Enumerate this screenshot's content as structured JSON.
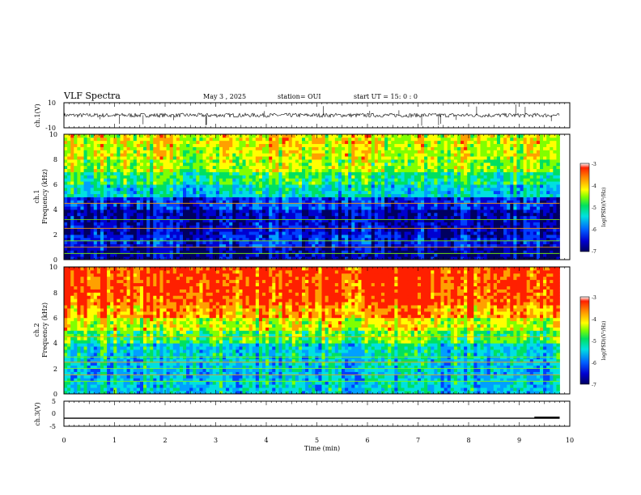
{
  "header": {
    "title": "VLF Spectra",
    "date": "May 3 , 2025",
    "station": "station= OUI",
    "start": "start UT = 15: 0 : 0"
  },
  "colors": {
    "spectrum_scale": [
      "#000060",
      "#0000d0",
      "#0040ff",
      "#00a0ff",
      "#00e0e0",
      "#00e060",
      "#80ff00",
      "#ffff00",
      "#ffa000",
      "#ff2000"
    ],
    "trace": "#000000"
  },
  "chart_data": [
    {
      "id": "ch1_waveform",
      "type": "line",
      "ylabel": "ch.1(V)",
      "ylim": [
        -10,
        10
      ],
      "yticks": [
        "10",
        "-10"
      ],
      "baseline": 0,
      "xlim": [
        0,
        10
      ],
      "data_end": 9.8
    },
    {
      "id": "ch1_spectrogram",
      "type": "heatmap",
      "ylabel": "ch.1",
      "ylabel2": "Frequency (kHz)",
      "ylim": [
        0,
        10
      ],
      "yticks": [
        "0",
        "2",
        "4",
        "6",
        "8",
        "10"
      ],
      "xlim": [
        0,
        10
      ],
      "data_end": 9.8,
      "profile_log_psd": [
        -6.6,
        -6.2,
        -6.4,
        -6.5,
        -6.1,
        -5.2,
        -4.8,
        -4.3,
        -4.1,
        -4.0
      ],
      "lines_khz": [
        0.5,
        1.0,
        1.5,
        2.5,
        3.2,
        4.5
      ],
      "colorbar": {
        "label": "log(PSD)(V²/Hz)",
        "range": [
          -7,
          -3
        ],
        "ticks": [
          "-3",
          "-4",
          "-5",
          "-6",
          "-7"
        ]
      }
    },
    {
      "id": "ch2_spectrogram",
      "type": "heatmap",
      "ylabel": "ch.2",
      "ylabel2": "Frequency (kHz)",
      "ylim": [
        0,
        10
      ],
      "yticks": [
        "0",
        "2",
        "4",
        "6",
        "8",
        "10"
      ],
      "xlim": [
        0,
        10
      ],
      "data_end": 9.8,
      "profile_log_psd": [
        -5.3,
        -5.4,
        -5.3,
        -5.2,
        -4.6,
        -4.1,
        -3.6,
        -3.3,
        -3.2,
        -3.2
      ],
      "lines_khz": [
        1.0,
        1.5,
        2.0,
        2.5,
        2.9,
        4.5
      ],
      "colorbar": {
        "label": "log(PSD)(V²/Hz)",
        "range": [
          -7,
          -3
        ],
        "ticks": [
          "-3",
          "-4",
          "-5",
          "-6",
          "-7"
        ]
      }
    },
    {
      "id": "ch3_waveform",
      "type": "line",
      "ylabel": "ch.3(V)",
      "ylim": [
        -5,
        5
      ],
      "yticks": [
        "5",
        "0",
        "-5"
      ],
      "baseline": -1.8,
      "step": {
        "x": 9.3,
        "value": -1.4
      },
      "xlim": [
        0,
        10
      ],
      "data_end": 9.8,
      "xlabel": "Time (min)",
      "xticks": [
        "0",
        "1",
        "2",
        "3",
        "4",
        "5",
        "6",
        "7",
        "8",
        "9",
        "10"
      ]
    }
  ]
}
